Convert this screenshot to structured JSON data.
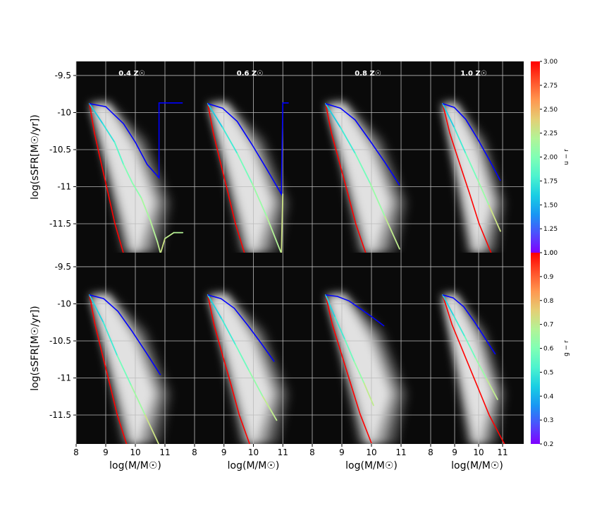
{
  "chart_data": [
    {
      "type": "line",
      "title": "0.4 Z☉",
      "ylabel": "log(sSFR[M☉/yr])",
      "xlim": [
        8,
        12
      ],
      "ylim": [
        -11.89,
        -9.31
      ],
      "xticks": [
        8,
        9,
        10,
        11
      ],
      "yticks": [
        -11.5,
        -11,
        -10.5,
        -10,
        -9.5
      ],
      "grid": true,
      "series": [
        {
          "color": "#ff0000",
          "x": [
            8.45,
            8.62,
            8.85,
            9.08,
            9.31,
            9.6
          ],
          "values": [
            -9.88,
            -10.28,
            -10.69,
            -11.09,
            -11.5,
            -11.9
          ]
        },
        {
          "x": [
            8.45,
            8.9,
            9.3,
            9.6,
            9.9,
            10.2,
            10.5,
            10.75,
            10.85,
            11.0,
            11.3,
            11.6
          ],
          "values": [
            -9.88,
            -10.15,
            -10.4,
            -10.7,
            -10.95,
            -11.15,
            -11.45,
            -11.75,
            -11.9,
            -11.7,
            -11.62,
            -11.62
          ],
          "c": [
            1.6,
            1.7,
            1.85,
            2.0,
            2.05,
            2.15,
            2.2,
            2.25,
            2.3,
            2.25,
            2.2,
            2.2
          ]
        },
        {
          "color": "#0000ff",
          "x": [
            8.45,
            9.0,
            9.6,
            10.0,
            10.4,
            10.8,
            10.8,
            10.85,
            11.6
          ],
          "values": [
            -9.88,
            -9.92,
            -10.15,
            -10.4,
            -10.7,
            -10.88,
            -9.87,
            -9.87,
            -9.87
          ]
        }
      ]
    },
    {
      "type": "line",
      "title": "0.6 Z☉",
      "xlim": [
        8,
        12
      ],
      "ylim": [
        -11.89,
        -9.31
      ],
      "xticks": [
        8,
        9,
        10,
        11
      ],
      "yticks": [
        -11.5,
        -11,
        -10.5,
        -10,
        -9.5
      ],
      "grid": true,
      "series": [
        {
          "color": "#ff0000",
          "x": [
            8.45,
            8.64,
            8.89,
            9.14,
            9.39,
            9.7
          ],
          "values": [
            -9.88,
            -10.28,
            -10.69,
            -11.09,
            -11.5,
            -11.9
          ]
        },
        {
          "x": [
            8.45,
            8.95,
            9.45,
            9.95,
            10.45,
            10.95,
            11.0
          ],
          "values": [
            -9.88,
            -10.2,
            -10.55,
            -10.95,
            -11.4,
            -11.9,
            -11.1
          ],
          "c": [
            1.6,
            1.75,
            1.95,
            2.1,
            2.2,
            2.3,
            2.2
          ]
        },
        {
          "color": "#0000ff",
          "x": [
            8.45,
            8.95,
            9.45,
            9.95,
            10.45,
            10.95,
            11.0,
            11.2
          ],
          "values": [
            -9.88,
            -9.94,
            -10.12,
            -10.43,
            -10.76,
            -11.1,
            -9.87,
            -9.87
          ]
        }
      ]
    },
    {
      "type": "line",
      "title": "0.8 Z☉",
      "xlim": [
        8,
        12
      ],
      "ylim": [
        -11.89,
        -9.31
      ],
      "xticks": [
        8,
        9,
        10,
        11
      ],
      "yticks": [
        -11.5,
        -11,
        -10.5,
        -10,
        -9.5
      ],
      "grid": true,
      "series": [
        {
          "color": "#ff0000",
          "x": [
            8.45,
            8.65,
            8.93,
            9.2,
            9.47,
            9.81
          ],
          "values": [
            -9.88,
            -10.28,
            -10.69,
            -11.09,
            -11.5,
            -11.9
          ]
        },
        {
          "x": [
            8.45,
            8.95,
            9.45,
            9.95,
            10.45,
            10.95
          ],
          "values": [
            -9.88,
            -10.2,
            -10.55,
            -10.95,
            -11.4,
            -11.84
          ],
          "c": [
            1.6,
            1.75,
            1.95,
            2.1,
            2.25,
            2.4
          ]
        },
        {
          "color": "#0000ff",
          "x": [
            8.45,
            8.95,
            9.45,
            9.95,
            10.45,
            10.95
          ],
          "values": [
            -9.88,
            -9.94,
            -10.1,
            -10.38,
            -10.67,
            -10.98
          ]
        }
      ]
    },
    {
      "type": "line",
      "title": "1.0 Z☉",
      "xlim": [
        8,
        11.88
      ],
      "ylim": [
        -11.89,
        -9.31
      ],
      "xticks": [
        8,
        9,
        10,
        11
      ],
      "yticks": [
        -11.5,
        -11,
        -10.5,
        -10,
        -9.5
      ],
      "grid": true,
      "series": [
        {
          "color": "#ff0000",
          "x": [
            8.5,
            8.8,
            9.21,
            9.62,
            10.02,
            10.53
          ],
          "values": [
            -9.88,
            -10.28,
            -10.69,
            -11.09,
            -11.5,
            -11.9
          ]
        },
        {
          "x": [
            8.5,
            8.98,
            9.46,
            9.95,
            10.43,
            10.91
          ],
          "values": [
            -9.88,
            -10.2,
            -10.55,
            -10.9,
            -11.25,
            -11.6
          ],
          "c": [
            1.6,
            1.75,
            1.95,
            2.1,
            2.3,
            2.45
          ]
        },
        {
          "color": "#0000ff",
          "x": [
            8.5,
            8.98,
            9.46,
            9.95,
            10.43,
            10.91
          ],
          "values": [
            -9.88,
            -9.93,
            -10.09,
            -10.35,
            -10.63,
            -10.92
          ]
        }
      ]
    },
    {
      "type": "line",
      "xlabel": "log(M/M☉)",
      "ylabel": "log(sSFR[M☉/yr])",
      "xlim": [
        8,
        12
      ],
      "ylim": [
        -11.89,
        -9.31
      ],
      "xticks": [
        8,
        9,
        10,
        11
      ],
      "yticks": [
        -11.5,
        -11,
        -10.5,
        -10,
        -9.5
      ],
      "grid": true,
      "series": [
        {
          "color": "#ff0000",
          "x": [
            8.45,
            8.64,
            8.89,
            9.14,
            9.39,
            9.71
          ],
          "values": [
            -9.88,
            -10.28,
            -10.69,
            -11.09,
            -11.5,
            -11.9
          ]
        },
        {
          "x": [
            8.45,
            8.92,
            9.39,
            9.86,
            10.33,
            10.8
          ],
          "values": [
            -9.88,
            -10.25,
            -10.7,
            -11.1,
            -11.5,
            -11.9
          ],
          "c": [
            0.45,
            0.5,
            0.58,
            0.65,
            0.72,
            0.78
          ]
        },
        {
          "color": "#0000ff",
          "x": [
            8.45,
            8.93,
            9.41,
            9.89,
            10.37,
            10.85
          ],
          "values": [
            -9.88,
            -9.93,
            -10.1,
            -10.37,
            -10.66,
            -10.96
          ]
        }
      ]
    },
    {
      "type": "line",
      "xlabel": "log(M/M☉)",
      "xlim": [
        8,
        12
      ],
      "ylim": [
        -11.89,
        -9.31
      ],
      "xticks": [
        8,
        9,
        10,
        11
      ],
      "yticks": [
        -11.5,
        -11,
        -10.5,
        -10,
        -9.5
      ],
      "grid": true,
      "series": [
        {
          "color": "#ff0000",
          "x": [
            8.45,
            8.66,
            8.95,
            9.24,
            9.52,
            9.88
          ],
          "values": [
            -9.88,
            -10.28,
            -10.69,
            -11.09,
            -11.5,
            -11.9
          ]
        },
        {
          "x": [
            8.45,
            8.92,
            9.39,
            9.85,
            10.32,
            10.79
          ],
          "values": [
            -9.88,
            -10.2,
            -10.55,
            -10.9,
            -11.25,
            -11.57
          ],
          "c": [
            0.45,
            0.5,
            0.57,
            0.63,
            0.7,
            0.78
          ]
        },
        {
          "color": "#0000ff",
          "x": [
            8.45,
            8.9,
            9.35,
            9.81,
            10.26,
            10.71
          ],
          "values": [
            -9.88,
            -9.93,
            -10.06,
            -10.29,
            -10.53,
            -10.78
          ]
        }
      ]
    },
    {
      "type": "line",
      "xlabel": "log(M/M☉)",
      "xlim": [
        8,
        12
      ],
      "ylim": [
        -11.89,
        -9.31
      ],
      "xticks": [
        8,
        9,
        10,
        11
      ],
      "yticks": [
        -11.5,
        -11,
        -10.5,
        -10,
        -9.5
      ],
      "grid": true,
      "series": [
        {
          "color": "#ff0000",
          "x": [
            8.45,
            8.68,
            8.99,
            9.3,
            9.61,
            10.0
          ],
          "values": [
            -9.88,
            -10.28,
            -10.68,
            -11.08,
            -11.48,
            -11.88
          ]
        },
        {
          "x": [
            8.45,
            8.77,
            9.1,
            9.42,
            9.75,
            10.07
          ],
          "values": [
            -9.88,
            -10.18,
            -10.48,
            -10.78,
            -11.07,
            -11.37
          ],
          "c": [
            0.45,
            0.5,
            0.57,
            0.63,
            0.7,
            0.76
          ]
        },
        {
          "color": "#0000ff",
          "x": [
            8.45,
            8.85,
            9.24,
            9.64,
            10.03,
            10.43
          ],
          "values": [
            -9.88,
            -9.9,
            -9.96,
            -10.07,
            -10.18,
            -10.3
          ]
        }
      ]
    },
    {
      "type": "line",
      "xlabel": "log(M/M☉)",
      "xlim": [
        8,
        11.88
      ],
      "ylim": [
        -11.89,
        -9.31
      ],
      "xticks": [
        8,
        9,
        10,
        11
      ],
      "yticks": [
        -11.5,
        -11,
        -10.5,
        -10,
        -9.5
      ],
      "grid": true,
      "series": [
        {
          "color": "#ff0000",
          "x": [
            8.5,
            8.89,
            9.41,
            9.92,
            10.44,
            11.09
          ],
          "values": [
            -9.88,
            -10.28,
            -10.69,
            -11.09,
            -11.5,
            -11.9
          ]
        },
        {
          "x": [
            8.5,
            8.96,
            9.42,
            9.87,
            10.33,
            10.79
          ],
          "values": [
            -9.88,
            -10.16,
            -10.44,
            -10.73,
            -11.01,
            -11.29
          ],
          "c": [
            0.45,
            0.5,
            0.57,
            0.64,
            0.7,
            0.75
          ]
        },
        {
          "color": "#0000ff",
          "x": [
            8.5,
            8.94,
            9.38,
            9.82,
            10.26,
            10.7
          ],
          "values": [
            -9.88,
            -9.92,
            -10.04,
            -10.24,
            -10.46,
            -10.68
          ]
        }
      ]
    },
    {
      "type": "colorbar",
      "label": "u − r",
      "colormap": "rainbow",
      "ylim": [
        1,
        3
      ],
      "yticks": [
        {
          "value": 1,
          "label": "1.00"
        },
        {
          "value": 1.25,
          "label": "1.25"
        },
        {
          "value": 1.5,
          "label": "1.50"
        },
        {
          "value": 1.75,
          "label": "1.75"
        },
        {
          "value": 2,
          "label": "2.00"
        },
        {
          "value": 2.25,
          "label": "2.25"
        },
        {
          "value": 2.5,
          "label": "2.50"
        },
        {
          "value": 2.75,
          "label": "2.75"
        },
        {
          "value": 3,
          "label": "3.00"
        }
      ]
    },
    {
      "type": "colorbar",
      "label": "g − r",
      "colormap": "rainbow",
      "ylim": [
        0.2,
        1
      ],
      "yticks": [
        0.2,
        0.3,
        0.4,
        0.5,
        0.6,
        0.7,
        0.8,
        0.9,
        {
          "value": 1,
          "label": "1.0"
        }
      ]
    }
  ]
}
